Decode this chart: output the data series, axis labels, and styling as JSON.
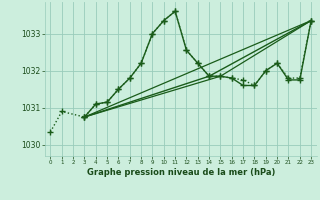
{
  "title": "Graphe pression niveau de la mer (hPa)",
  "bg_color": "#cceedd",
  "grid_color": "#99ccbb",
  "line_color": "#1a5c1a",
  "xlim": [
    -0.5,
    23.5
  ],
  "ylim": [
    1029.7,
    1033.85
  ],
  "yticks": [
    1030,
    1031,
    1032,
    1033
  ],
  "xticks": [
    0,
    1,
    2,
    3,
    4,
    5,
    6,
    7,
    8,
    9,
    10,
    11,
    12,
    13,
    14,
    15,
    16,
    17,
    18,
    19,
    20,
    21,
    22,
    23
  ],
  "series": [
    {
      "x": [
        0,
        1,
        3,
        4,
        5,
        6,
        7,
        8,
        9,
        10,
        11,
        12,
        13,
        14,
        15,
        16,
        17,
        18,
        19,
        20,
        21,
        22,
        23
      ],
      "y": [
        1030.35,
        1030.9,
        1030.75,
        1031.1,
        1031.15,
        1031.5,
        1031.8,
        1032.2,
        1033.0,
        1033.35,
        1033.6,
        1032.55,
        1032.2,
        1031.85,
        1031.85,
        1031.8,
        1031.75,
        1031.6,
        1032.0,
        1032.2,
        1031.8,
        1031.8,
        1033.35
      ],
      "marker": "+",
      "markersize": 4,
      "linestyle": "dotted",
      "linewidth": 1.0
    },
    {
      "x": [
        3,
        4,
        5,
        6,
        7,
        8,
        9,
        10,
        11,
        12,
        13,
        14,
        23
      ],
      "y": [
        1030.75,
        1031.1,
        1031.15,
        1031.5,
        1031.8,
        1032.2,
        1033.0,
        1033.35,
        1033.6,
        1032.55,
        1032.2,
        1031.85,
        1033.35
      ],
      "marker": "+",
      "markersize": 4,
      "linestyle": "solid",
      "linewidth": 1.0
    },
    {
      "x": [
        3,
        23
      ],
      "y": [
        1030.75,
        1033.35
      ],
      "marker": null,
      "markersize": 0,
      "linestyle": "solid",
      "linewidth": 0.9
    },
    {
      "x": [
        3,
        14,
        15,
        16,
        17,
        18,
        19,
        20,
        21,
        22,
        23
      ],
      "y": [
        1030.75,
        1031.85,
        1031.85,
        1031.8,
        1031.6,
        1031.6,
        1032.0,
        1032.2,
        1031.75,
        1031.75,
        1033.35
      ],
      "marker": "+",
      "markersize": 4,
      "linestyle": "solid",
      "linewidth": 1.0
    },
    {
      "x": [
        3,
        15,
        23
      ],
      "y": [
        1030.75,
        1031.85,
        1033.35
      ],
      "marker": null,
      "markersize": 0,
      "linestyle": "solid",
      "linewidth": 0.9
    }
  ]
}
